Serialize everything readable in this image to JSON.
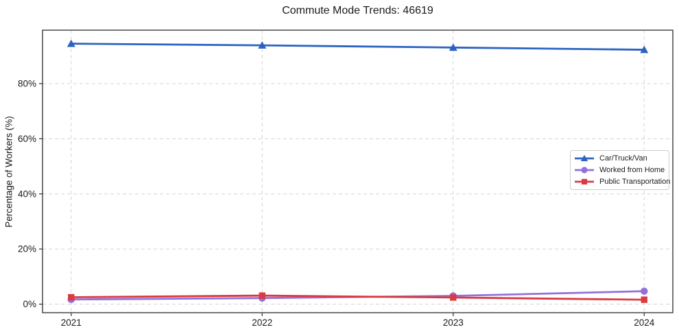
{
  "chart_data": {
    "type": "line",
    "title": "Commute Mode Trends: 46619",
    "xlabel": "",
    "ylabel": "Percentage of Workers (%)",
    "x": [
      2021,
      2022,
      2023,
      2024
    ],
    "x_tick_labels": [
      "2021",
      "2022",
      "2023",
      "2024"
    ],
    "y_ticks": [
      0,
      20,
      40,
      60,
      80
    ],
    "y_tick_labels": [
      "0%",
      "20%",
      "40%",
      "60%",
      "80%"
    ],
    "xlim": [
      2020.85,
      2024.15
    ],
    "ylim": [
      -3.1,
      99.4
    ],
    "grid": true,
    "grid_style": "dashed",
    "grid_color": "#d4d4d4",
    "spine_color": "#2b2b2b",
    "background": "#ffffff",
    "legend_position": "center right",
    "series": [
      {
        "name": "Car/Truck/Van",
        "color": "#2c63c1",
        "marker": "triangle",
        "values": [
          94.5,
          93.9,
          93.1,
          92.3
        ]
      },
      {
        "name": "Worked from Home",
        "color": "#9370db",
        "marker": "circle",
        "values": [
          1.7,
          2.2,
          3.0,
          4.7
        ]
      },
      {
        "name": "Public Transportation",
        "color": "#d93b40",
        "marker": "square",
        "values": [
          2.5,
          3.1,
          2.4,
          1.6
        ]
      }
    ]
  }
}
